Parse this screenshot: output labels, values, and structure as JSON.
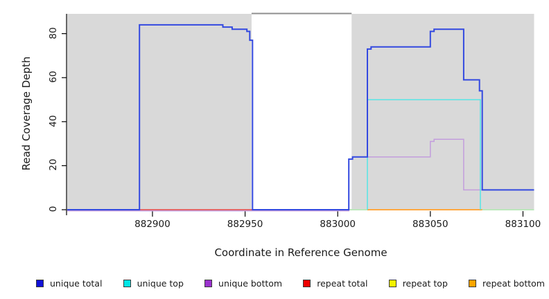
{
  "figure": {
    "background": "#ffffff"
  },
  "chart_data": {
    "type": "line",
    "subtype": "step-coverage",
    "title": "",
    "xlabel": "Coordinate in Reference Genome",
    "ylabel": "Read Coverage Depth",
    "xlim": [
      882854,
      883106
    ],
    "ylim": [
      0,
      89
    ],
    "grid": false,
    "x_ticks": [
      882900,
      882950,
      883000,
      883050,
      883100
    ],
    "y_ticks": [
      0,
      20,
      40,
      60,
      80
    ],
    "shaded_regions": {
      "color": "#d9d9d9",
      "spans": [
        {
          "from": 882854,
          "to": 882953.5
        },
        {
          "from": 883007.5,
          "to": 883106
        }
      ]
    },
    "gap_top_line": {
      "from": 882953.5,
      "to": 883007.5,
      "color": "#8f8f8f"
    },
    "series": [
      {
        "name": "repeat total",
        "line_color": "#dd3333",
        "width": 1.4,
        "segments": [
          [
            [
              882893,
              0
            ],
            [
              882954,
              0
            ]
          ]
        ]
      },
      {
        "name": "repeat top",
        "line_color": "#a6dfa6",
        "width": 1.4,
        "note": "drawn at 0; appears pale green where it coincides with unique top at 0",
        "segments": [
          [
            [
              883006,
              0
            ],
            [
              883016,
              0
            ]
          ],
          [
            [
              883078,
              0
            ],
            [
              883106,
              0
            ]
          ]
        ]
      },
      {
        "name": "repeat bottom",
        "line_color": "#ff8c00",
        "width": 1.6,
        "segments": [
          [
            [
              883016,
              0
            ],
            [
              883078,
              0
            ]
          ]
        ]
      },
      {
        "name": "unique bottom",
        "line_color": "#c39ddd",
        "width": 1.5,
        "zero_dy": 1.6,
        "segments": [
          [
            [
              882854,
              0
            ],
            [
              883006,
              0
            ],
            [
              883006,
              23
            ],
            [
              883008,
              23
            ],
            [
              883008,
              24
            ],
            [
              883050,
              24
            ],
            [
              883050,
              31
            ],
            [
              883052,
              31
            ],
            [
              883052,
              32
            ],
            [
              883068,
              32
            ],
            [
              883068,
              9
            ],
            [
              883106,
              9
            ]
          ]
        ]
      },
      {
        "name": "unique top",
        "line_color": "#55e6e6",
        "width": 1.5,
        "segments": [
          [
            [
              883016,
              0
            ],
            [
              883016,
              50
            ],
            [
              883077,
              50
            ],
            [
              883077,
              0
            ]
          ]
        ]
      },
      {
        "name": "unique total",
        "line_color": "#3349e0",
        "width": 2,
        "segments": [
          [
            [
              882854,
              0
            ],
            [
              882893,
              0
            ],
            [
              882893,
              84
            ],
            [
              882938,
              84
            ],
            [
              882938,
              83
            ],
            [
              882943,
              83
            ],
            [
              882943,
              82
            ],
            [
              882951,
              82
            ],
            [
              882951,
              81
            ],
            [
              882952.5,
              81
            ],
            [
              882952.5,
              77
            ],
            [
              882954,
              77
            ],
            [
              882954,
              0
            ],
            [
              883006,
              0
            ],
            [
              883006,
              23
            ],
            [
              883008,
              23
            ],
            [
              883008,
              24
            ],
            [
              883016,
              24
            ],
            [
              883016,
              73
            ],
            [
              883018,
              73
            ],
            [
              883018,
              74
            ],
            [
              883050,
              74
            ],
            [
              883050,
              81
            ],
            [
              883052,
              81
            ],
            [
              883052,
              82
            ],
            [
              883068,
              82
            ],
            [
              883068,
              59
            ],
            [
              883076.5,
              59
            ],
            [
              883076.5,
              54
            ],
            [
              883078,
              54
            ],
            [
              883078,
              9
            ],
            [
              883106,
              9
            ]
          ]
        ]
      }
    ]
  },
  "legend": {
    "items": [
      {
        "label": "unique total",
        "color": "#1212d8"
      },
      {
        "label": "unique top",
        "color": "#00e6e6"
      },
      {
        "label": "unique bottom",
        "color": "#9a32cd"
      },
      {
        "label": "repeat total",
        "color": "#ee0000"
      },
      {
        "label": "repeat top",
        "color": "#f4f400"
      },
      {
        "label": "repeat bottom",
        "color": "#ffa500"
      }
    ]
  }
}
